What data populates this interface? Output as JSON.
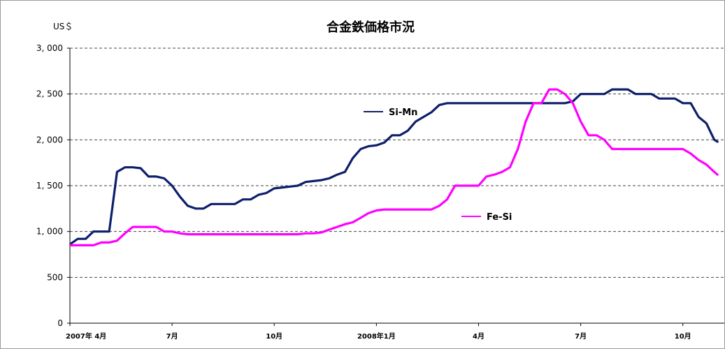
{
  "chart_data": {
    "type": "line",
    "title": "合金鉄価格市況",
    "ylabel": "US＄",
    "xlabel": "",
    "ylim": [
      0,
      3000
    ],
    "yticks": [
      0,
      500,
      1000,
      1500,
      2000,
      2500,
      3000
    ],
    "ytick_labels": [
      "0",
      "500",
      "1, 000",
      "1, 500",
      "2, 000",
      "2, 500",
      "3, 000"
    ],
    "grid": "horizontal dashed",
    "xticks": [
      {
        "label": "2007年 4月",
        "x": 0
      },
      {
        "label": "7月",
        "x": 13
      },
      {
        "label": "10月",
        "x": 26
      },
      {
        "label": "2008年1月",
        "x": 39
      },
      {
        "label": "4月",
        "x": 52
      },
      {
        "label": "7月",
        "x": 65
      },
      {
        "label": "10月",
        "x": 78
      }
    ],
    "xlim": [
      0,
      81
    ],
    "series": [
      {
        "name": "Si-Mn",
        "color": "#0d1f6b",
        "points": [
          [
            0,
            860
          ],
          [
            1,
            920
          ],
          [
            2,
            920
          ],
          [
            3,
            1000
          ],
          [
            4,
            1000
          ],
          [
            5,
            1000
          ],
          [
            6,
            1650
          ],
          [
            7,
            1700
          ],
          [
            8,
            1700
          ],
          [
            9,
            1690
          ],
          [
            10,
            1600
          ],
          [
            11,
            1600
          ],
          [
            12,
            1580
          ],
          [
            13,
            1500
          ],
          [
            14,
            1380
          ],
          [
            15,
            1280
          ],
          [
            16,
            1250
          ],
          [
            17,
            1250
          ],
          [
            18,
            1300
          ],
          [
            19,
            1300
          ],
          [
            20,
            1300
          ],
          [
            21,
            1300
          ],
          [
            22,
            1350
          ],
          [
            23,
            1350
          ],
          [
            24,
            1400
          ],
          [
            25,
            1420
          ],
          [
            26,
            1470
          ],
          [
            27,
            1480
          ],
          [
            28,
            1490
          ],
          [
            29,
            1500
          ],
          [
            30,
            1540
          ],
          [
            31,
            1550
          ],
          [
            32,
            1560
          ],
          [
            33,
            1580
          ],
          [
            34,
            1620
          ],
          [
            35,
            1650
          ],
          [
            36,
            1800
          ],
          [
            37,
            1900
          ],
          [
            38,
            1930
          ],
          [
            39,
            1940
          ],
          [
            40,
            1970
          ],
          [
            41,
            2050
          ],
          [
            42,
            2050
          ],
          [
            43,
            2100
          ],
          [
            44,
            2200
          ],
          [
            45,
            2250
          ],
          [
            46,
            2300
          ],
          [
            47,
            2380
          ],
          [
            48,
            2400
          ],
          [
            49,
            2400
          ],
          [
            50,
            2400
          ],
          [
            51,
            2400
          ],
          [
            52,
            2400
          ],
          [
            53,
            2400
          ],
          [
            54,
            2400
          ],
          [
            55,
            2400
          ],
          [
            56,
            2400
          ],
          [
            57,
            2400
          ],
          [
            58,
            2400
          ],
          [
            59,
            2400
          ],
          [
            60,
            2400
          ],
          [
            61,
            2400
          ],
          [
            62,
            2400
          ],
          [
            63,
            2400
          ],
          [
            64,
            2420
          ],
          [
            65,
            2500
          ],
          [
            66,
            2500
          ],
          [
            67,
            2500
          ],
          [
            68,
            2500
          ],
          [
            69,
            2550
          ],
          [
            70,
            2550
          ],
          [
            71,
            2550
          ],
          [
            72,
            2500
          ],
          [
            73,
            2500
          ],
          [
            74,
            2500
          ],
          [
            75,
            2450
          ],
          [
            76,
            2450
          ],
          [
            77,
            2450
          ],
          [
            78,
            2400
          ],
          [
            79,
            2400
          ],
          [
            80,
            2250
          ],
          [
            81,
            2180
          ],
          [
            82,
            2000
          ],
          [
            82.4,
            1980
          ]
        ]
      },
      {
        "name": "Fe-Si",
        "color": "#ff00ff",
        "points": [
          [
            0,
            850
          ],
          [
            1,
            850
          ],
          [
            2,
            850
          ],
          [
            3,
            850
          ],
          [
            4,
            880
          ],
          [
            5,
            880
          ],
          [
            6,
            900
          ],
          [
            7,
            980
          ],
          [
            8,
            1050
          ],
          [
            9,
            1050
          ],
          [
            10,
            1050
          ],
          [
            11,
            1050
          ],
          [
            12,
            1000
          ],
          [
            13,
            1000
          ],
          [
            14,
            980
          ],
          [
            15,
            970
          ],
          [
            16,
            970
          ],
          [
            17,
            970
          ],
          [
            18,
            970
          ],
          [
            19,
            970
          ],
          [
            20,
            970
          ],
          [
            21,
            970
          ],
          [
            22,
            970
          ],
          [
            23,
            970
          ],
          [
            24,
            970
          ],
          [
            25,
            970
          ],
          [
            26,
            970
          ],
          [
            27,
            970
          ],
          [
            28,
            970
          ],
          [
            29,
            970
          ],
          [
            30,
            980
          ],
          [
            31,
            980
          ],
          [
            32,
            990
          ],
          [
            33,
            1020
          ],
          [
            34,
            1050
          ],
          [
            35,
            1080
          ],
          [
            36,
            1100
          ],
          [
            37,
            1150
          ],
          [
            38,
            1200
          ],
          [
            39,
            1230
          ],
          [
            40,
            1240
          ],
          [
            41,
            1240
          ],
          [
            42,
            1240
          ],
          [
            43,
            1240
          ],
          [
            44,
            1240
          ],
          [
            45,
            1240
          ],
          [
            46,
            1240
          ],
          [
            47,
            1280
          ],
          [
            48,
            1350
          ],
          [
            49,
            1500
          ],
          [
            50,
            1500
          ],
          [
            51,
            1500
          ],
          [
            52,
            1500
          ],
          [
            53,
            1600
          ],
          [
            54,
            1620
          ],
          [
            55,
            1650
          ],
          [
            56,
            1700
          ],
          [
            57,
            1900
          ],
          [
            58,
            2200
          ],
          [
            59,
            2400
          ],
          [
            60,
            2400
          ],
          [
            61,
            2550
          ],
          [
            62,
            2550
          ],
          [
            63,
            2500
          ],
          [
            64,
            2400
          ],
          [
            65,
            2200
          ],
          [
            66,
            2050
          ],
          [
            67,
            2050
          ],
          [
            68,
            2000
          ],
          [
            69,
            1900
          ],
          [
            70,
            1900
          ],
          [
            71,
            1900
          ],
          [
            72,
            1900
          ],
          [
            73,
            1900
          ],
          [
            74,
            1900
          ],
          [
            75,
            1900
          ],
          [
            76,
            1900
          ],
          [
            77,
            1900
          ],
          [
            78,
            1900
          ],
          [
            79,
            1850
          ],
          [
            80,
            1780
          ],
          [
            81,
            1730
          ],
          [
            82,
            1650
          ],
          [
            82.4,
            1620
          ]
        ]
      }
    ],
    "legend": [
      {
        "name": "Si-Mn",
        "placement": "upper-center"
      },
      {
        "name": "Fe-Si",
        "placement": "center-right"
      }
    ]
  }
}
